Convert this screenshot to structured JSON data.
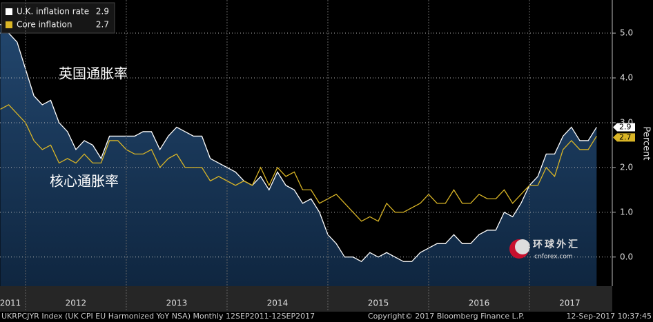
{
  "chart_data": {
    "type": "area-line",
    "annotations": [
      "英国通胀率",
      "核心通胀率"
    ],
    "y_label": "Percent",
    "watermark": [
      "环球外汇",
      "cnforex.com"
    ],
    "footer": [
      "UKRPCJYR Index (UK CPI EU Harmonized YoY NSA)  Monthly 12SEP2011-12SEP2017",
      "Copyright© 2017 Bloomberg Finance L.P.",
      "12-Sep-2017 10:37:45"
    ],
    "x": [
      2011.75,
      2011.8333,
      2011.9167,
      2012.0,
      2012.0833,
      2012.1667,
      2012.25,
      2012.3333,
      2012.4167,
      2012.5,
      2012.5833,
      2012.6667,
      2012.75,
      2012.8333,
      2012.9167,
      2013.0,
      2013.0833,
      2013.1667,
      2013.25,
      2013.3333,
      2013.4167,
      2013.5,
      2013.5833,
      2013.6667,
      2013.75,
      2013.8333,
      2013.9167,
      2014.0,
      2014.0833,
      2014.1667,
      2014.25,
      2014.3333,
      2014.4167,
      2014.5,
      2014.5833,
      2014.6667,
      2014.75,
      2014.8333,
      2014.9167,
      2015.0,
      2015.0833,
      2015.1667,
      2015.25,
      2015.3333,
      2015.4167,
      2015.5,
      2015.5833,
      2015.6667,
      2015.75,
      2015.8333,
      2015.9167,
      2016.0,
      2016.0833,
      2016.1667,
      2016.25,
      2016.3333,
      2016.4167,
      2016.5,
      2016.5833,
      2016.6667,
      2016.75,
      2016.8333,
      2016.9167,
      2017.0,
      2017.0833,
      2017.1667,
      2017.25,
      2017.3333,
      2017.4167,
      2017.5,
      2017.5833,
      2017.6667
    ],
    "series": [
      {
        "name": "U.K. inflation rate",
        "color": "#ffffff",
        "fill": true,
        "values": [
          5.2,
          5.0,
          4.8,
          4.2,
          3.6,
          3.4,
          3.5,
          3.0,
          2.8,
          2.4,
          2.6,
          2.5,
          2.2,
          2.7,
          2.7,
          2.7,
          2.7,
          2.8,
          2.8,
          2.4,
          2.7,
          2.9,
          2.8,
          2.7,
          2.7,
          2.2,
          2.1,
          2.0,
          1.9,
          1.7,
          1.6,
          1.8,
          1.5,
          1.9,
          1.6,
          1.5,
          1.2,
          1.3,
          1.0,
          0.5,
          0.3,
          0.0,
          0.0,
          -0.1,
          0.1,
          0.0,
          0.1,
          0.0,
          -0.1,
          -0.1,
          0.1,
          0.2,
          0.3,
          0.3,
          0.5,
          0.3,
          0.3,
          0.5,
          0.6,
          0.6,
          1.0,
          0.9,
          1.2,
          1.6,
          1.8,
          2.3,
          2.3,
          2.7,
          2.9,
          2.6,
          2.6,
          2.9
        ]
      },
      {
        "name": "Core inflation",
        "color": "#d9b526",
        "fill": false,
        "values": [
          3.3,
          3.4,
          3.2,
          3.0,
          2.6,
          2.4,
          2.5,
          2.1,
          2.2,
          2.1,
          2.3,
          2.1,
          2.1,
          2.6,
          2.6,
          2.4,
          2.3,
          2.3,
          2.4,
          2.0,
          2.2,
          2.3,
          2.0,
          2.0,
          2.0,
          1.7,
          1.8,
          1.7,
          1.6,
          1.7,
          1.6,
          2.0,
          1.6,
          2.0,
          1.8,
          1.9,
          1.5,
          1.5,
          1.2,
          1.3,
          1.4,
          1.2,
          1.0,
          0.8,
          0.9,
          0.8,
          1.2,
          1.0,
          1.0,
          1.1,
          1.2,
          1.4,
          1.2,
          1.2,
          1.5,
          1.2,
          1.2,
          1.4,
          1.3,
          1.3,
          1.5,
          1.2,
          1.4,
          1.6,
          1.6,
          2.0,
          1.8,
          2.4,
          2.6,
          2.4,
          2.4,
          2.7
        ]
      }
    ],
    "xlim": [
      2011.747,
      2017.822
    ],
    "xticks": [
      {
        "value": 2011.85,
        "label": "2011"
      },
      {
        "value": 2012.5,
        "label": "2012"
      },
      {
        "value": 2013.5,
        "label": "2013"
      },
      {
        "value": 2014.5,
        "label": "2014"
      },
      {
        "value": 2015.5,
        "label": "2015"
      },
      {
        "value": 2016.5,
        "label": "2016"
      },
      {
        "value": 2017.4,
        "label": "2017"
      }
    ],
    "xgrid": [
      2012,
      2013,
      2014,
      2015,
      2016,
      2017
    ],
    "ylim": [
      -0.65,
      5.74
    ],
    "yticks": [
      {
        "value": 0,
        "label": "0.0"
      },
      {
        "value": 1,
        "label": "1.0"
      },
      {
        "value": 2,
        "label": "2.0"
      },
      {
        "value": 3,
        "label": "3.0"
      },
      {
        "value": 4,
        "label": "4.0"
      },
      {
        "value": 5,
        "label": "5.0"
      }
    ],
    "grid": true
  }
}
